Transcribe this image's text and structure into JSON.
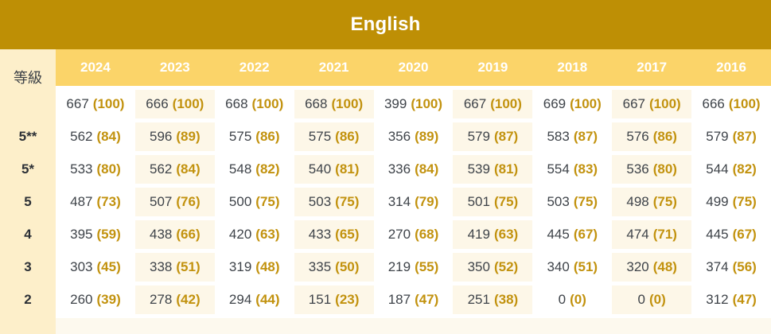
{
  "title": "English",
  "colors": {
    "title_band": "#be8f05",
    "year_band": "#fbd469",
    "label_column": "#fdefca",
    "stripe_column": "#fdf7e8",
    "partial_row": "#fdf9ee",
    "score_text": "#3e4349",
    "rate_text": "#c2920e",
    "header_text": "#ffffff"
  },
  "chart_data": {
    "type": "table",
    "title": "English",
    "cell_format": "score (rate)",
    "columns": [
      "等級",
      "2024",
      "2023",
      "2022",
      "2021",
      "2020",
      "2019",
      "2018",
      "2017",
      "2016"
    ],
    "rows": [
      {
        "grade": "",
        "scores": [
          667,
          666,
          668,
          668,
          399,
          667,
          669,
          667,
          666
        ],
        "rates": [
          100,
          100,
          100,
          100,
          100,
          100,
          100,
          100,
          100
        ]
      },
      {
        "grade": "5**",
        "scores": [
          562,
          596,
          575,
          575,
          356,
          579,
          583,
          576,
          579
        ],
        "rates": [
          84,
          89,
          86,
          86,
          89,
          87,
          87,
          86,
          87
        ]
      },
      {
        "grade": "5*",
        "scores": [
          533,
          562,
          548,
          540,
          336,
          539,
          554,
          536,
          544
        ],
        "rates": [
          80,
          84,
          82,
          81,
          84,
          81,
          83,
          80,
          82
        ]
      },
      {
        "grade": "5",
        "scores": [
          487,
          507,
          500,
          503,
          314,
          501,
          503,
          498,
          499
        ],
        "rates": [
          73,
          76,
          75,
          75,
          79,
          75,
          75,
          75,
          75
        ]
      },
      {
        "grade": "4",
        "scores": [
          395,
          438,
          420,
          433,
          270,
          419,
          445,
          474,
          445
        ],
        "rates": [
          59,
          66,
          63,
          65,
          68,
          63,
          67,
          71,
          67
        ]
      },
      {
        "grade": "3",
        "scores": [
          303,
          338,
          319,
          335,
          219,
          350,
          340,
          320,
          374
        ],
        "rates": [
          45,
          51,
          48,
          50,
          55,
          52,
          51,
          48,
          56
        ]
      },
      {
        "grade": "2",
        "scores": [
          260,
          278,
          294,
          151,
          187,
          251,
          0,
          0,
          312
        ],
        "rates": [
          39,
          42,
          44,
          23,
          47,
          38,
          0,
          0,
          47
        ]
      }
    ]
  }
}
